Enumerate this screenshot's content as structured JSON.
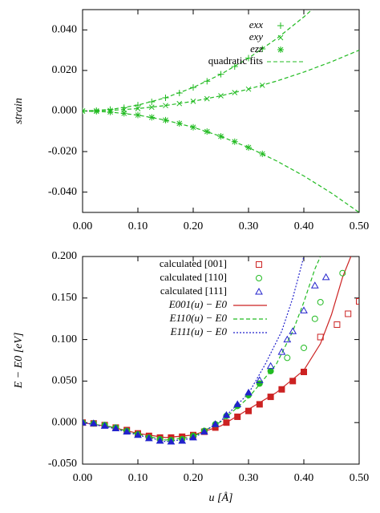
{
  "chart_data": [
    {
      "type": "scatter",
      "ylabel": "strain",
      "xlim": [
        0,
        0.5
      ],
      "ylim": [
        -0.05,
        0.05
      ],
      "xticks": [
        {
          "value": 0,
          "label": "0.00"
        },
        {
          "value": 0.1,
          "label": "0.10"
        },
        {
          "value": 0.2,
          "label": "0.20"
        },
        {
          "value": 0.3,
          "label": "0.30"
        },
        {
          "value": 0.4,
          "label": "0.40"
        },
        {
          "value": 0.5,
          "label": "0.50"
        }
      ],
      "yticks": [
        {
          "value": -0.04,
          "label": "-0.040"
        },
        {
          "value": -0.02,
          "label": "-0.020"
        },
        {
          "value": 0,
          "label": "0.000"
        },
        {
          "value": 0.02,
          "label": "0.020"
        },
        {
          "value": 0.04,
          "label": "0.040"
        }
      ],
      "legend": "upper right",
      "fit_name": "quadratic fits",
      "fit_color": "#22bb22",
      "fit_dash": "dashed",
      "series": [
        {
          "name": "exx",
          "color": "#22bb22",
          "marker": "plus",
          "x": [
            0,
            0.025,
            0.05,
            0.075,
            0.1,
            0.125,
            0.15,
            0.175,
            0.2,
            0.225,
            0.25,
            0.275,
            0.3,
            0.325
          ],
          "values": [
            0,
            0.00018,
            0.00073,
            0.00163,
            0.0029,
            0.00453,
            0.00653,
            0.00888,
            0.0116,
            0.01468,
            0.01813,
            0.02193,
            0.0261,
            0.03063
          ],
          "fit": {
            "x": [
              0,
              0.05,
              0.1,
              0.15,
              0.2,
              0.25,
              0.3,
              0.35,
              0.4,
              0.45,
              0.5
            ],
            "values": [
              0,
              0.000725,
              0.0029,
              0.006525,
              0.0116,
              0.018125,
              0.0261,
              0.035525,
              0.0464,
              0.058725,
              0.0725
            ]
          }
        },
        {
          "name": "exy",
          "color": "#22bb22",
          "marker": "cross",
          "x": [
            0,
            0.025,
            0.05,
            0.075,
            0.1,
            0.125,
            0.15,
            0.175,
            0.2,
            0.225,
            0.25,
            0.275,
            0.3,
            0.325
          ],
          "values": [
            0,
            7.5e-05,
            0.0003,
            0.000675,
            0.0012,
            0.001875,
            0.0027,
            0.003675,
            0.0048,
            0.006075,
            0.0075,
            0.009075,
            0.0108,
            0.012675
          ],
          "fit": {
            "x": [
              0,
              0.05,
              0.1,
              0.15,
              0.2,
              0.25,
              0.3,
              0.35,
              0.4,
              0.45,
              0.5
            ],
            "values": [
              0,
              0.0003,
              0.0012,
              0.0027,
              0.0048,
              0.0075,
              0.0108,
              0.0147,
              0.0192,
              0.0243,
              0.03
            ]
          }
        },
        {
          "name": "ezz",
          "color": "#22bb22",
          "marker": "star",
          "x": [
            0,
            0.025,
            0.05,
            0.075,
            0.1,
            0.125,
            0.15,
            0.175,
            0.2,
            0.225,
            0.25,
            0.275,
            0.3,
            0.325
          ],
          "values": [
            0,
            -0.000125,
            -0.0005,
            -0.001125,
            -0.002,
            -0.003125,
            -0.0045,
            -0.006125,
            -0.008,
            -0.010125,
            -0.0125,
            -0.015125,
            -0.018,
            -0.021125
          ],
          "fit": {
            "x": [
              0,
              0.05,
              0.1,
              0.15,
              0.2,
              0.25,
              0.3,
              0.35,
              0.4,
              0.45,
              0.5
            ],
            "values": [
              0,
              -0.0005,
              -0.002,
              -0.0045,
              -0.008,
              -0.0125,
              -0.018,
              -0.0245,
              -0.032,
              -0.0405,
              -0.05
            ]
          }
        }
      ]
    },
    {
      "type": "scatter",
      "ylabel": "E − E0 [eV]",
      "xlabel": "u [Å]",
      "xlim": [
        0,
        0.5
      ],
      "ylim": [
        -0.05,
        0.2
      ],
      "xticks": [
        {
          "value": 0,
          "label": "0.00"
        },
        {
          "value": 0.1,
          "label": "0.10"
        },
        {
          "value": 0.2,
          "label": "0.20"
        },
        {
          "value": 0.3,
          "label": "0.30"
        },
        {
          "value": 0.4,
          "label": "0.40"
        },
        {
          "value": 0.5,
          "label": "0.50"
        }
      ],
      "yticks": [
        {
          "value": -0.05,
          "label": "-0.050"
        },
        {
          "value": 0,
          "label": "0.000"
        },
        {
          "value": 0.05,
          "label": "0.050"
        },
        {
          "value": 0.1,
          "label": "0.100"
        },
        {
          "value": 0.15,
          "label": "0.150"
        },
        {
          "value": 0.2,
          "label": "0.200"
        }
      ],
      "legend": "upper left",
      "series": [
        {
          "name": "calculated [001]",
          "color": "#cc2222",
          "marker": "square",
          "x": [
            0,
            0.02,
            0.04,
            0.06,
            0.08,
            0.1,
            0.12,
            0.14,
            0.16,
            0.18,
            0.2,
            0.22,
            0.24,
            0.26,
            0.28,
            0.3,
            0.32,
            0.34,
            0.36,
            0.38,
            0.4
          ],
          "values": [
            0,
            -0.001,
            -0.003,
            -0.006,
            -0.009,
            -0.013,
            -0.016,
            -0.018,
            -0.018,
            -0.017,
            -0.015,
            -0.011,
            -0.006,
            0,
            0.007,
            0.014,
            0.022,
            0.031,
            0.04,
            0.05,
            0.061
          ],
          "open_x": [
            0.43,
            0.46,
            0.48,
            0.5
          ],
          "open_values": [
            0.103,
            0.118,
            0.131,
            0.146
          ]
        },
        {
          "name": "calculated [110]",
          "color": "#22bb22",
          "marker": "circle",
          "x": [
            0,
            0.02,
            0.04,
            0.06,
            0.08,
            0.1,
            0.12,
            0.14,
            0.16,
            0.18,
            0.2,
            0.22,
            0.24,
            0.26,
            0.28,
            0.3,
            0.32,
            0.34
          ],
          "values": [
            0,
            -0.001,
            -0.003,
            -0.006,
            -0.01,
            -0.014,
            -0.018,
            -0.02,
            -0.021,
            -0.02,
            -0.016,
            -0.01,
            -0.002,
            0.008,
            0.02,
            0.033,
            0.047,
            0.062
          ],
          "open_x": [
            0.37,
            0.4,
            0.42,
            0.43,
            0.47
          ],
          "open_values": [
            0.078,
            0.09,
            0.125,
            0.145,
            0.18
          ]
        },
        {
          "name": "calculated [111]",
          "color": "#2222cc",
          "marker": "triangle",
          "x": [
            0,
            0.02,
            0.04,
            0.06,
            0.08,
            0.1,
            0.12,
            0.14,
            0.16,
            0.18,
            0.2,
            0.22,
            0.24,
            0.26,
            0.28,
            0.3
          ],
          "values": [
            0,
            -0.001,
            -0.004,
            -0.007,
            -0.011,
            -0.015,
            -0.019,
            -0.022,
            -0.023,
            -0.022,
            -0.018,
            -0.011,
            -0.002,
            0.009,
            0.022,
            0.036
          ],
          "open_x": [
            0.32,
            0.34,
            0.36,
            0.37,
            0.38,
            0.4,
            0.42,
            0.44
          ],
          "open_values": [
            0.051,
            0.068,
            0.085,
            0.1,
            0.11,
            0.135,
            0.165,
            0.175
          ]
        }
      ],
      "curves": [
        {
          "name": "E001(u) − E0",
          "color": "#cc2222",
          "dash": "solid",
          "x": [
            0,
            0.05,
            0.1,
            0.15,
            0.2,
            0.25,
            0.3,
            0.35,
            0.4,
            0.43,
            0.45,
            0.47,
            0.485
          ],
          "values": [
            0,
            -0.005,
            -0.013,
            -0.018,
            -0.015,
            -0.004,
            0.016,
            0.036,
            0.063,
            0.095,
            0.13,
            0.175,
            0.2
          ]
        },
        {
          "name": "E110(u) − E0",
          "color": "#22bb22",
          "dash": "dashed",
          "x": [
            0,
            0.05,
            0.1,
            0.15,
            0.2,
            0.25,
            0.3,
            0.35,
            0.38,
            0.4,
            0.42,
            0.43
          ],
          "values": [
            0,
            -0.005,
            -0.014,
            -0.021,
            -0.017,
            0.001,
            0.03,
            0.07,
            0.11,
            0.145,
            0.185,
            0.2
          ]
        },
        {
          "name": "E111(u) − E0",
          "color": "#2222cc",
          "dash": "dotted",
          "x": [
            0,
            0.05,
            0.1,
            0.15,
            0.2,
            0.25,
            0.3,
            0.33,
            0.36,
            0.38,
            0.4
          ],
          "values": [
            0,
            -0.006,
            -0.015,
            -0.023,
            -0.019,
            0.002,
            0.035,
            0.07,
            0.11,
            0.15,
            0.2
          ]
        }
      ]
    }
  ]
}
